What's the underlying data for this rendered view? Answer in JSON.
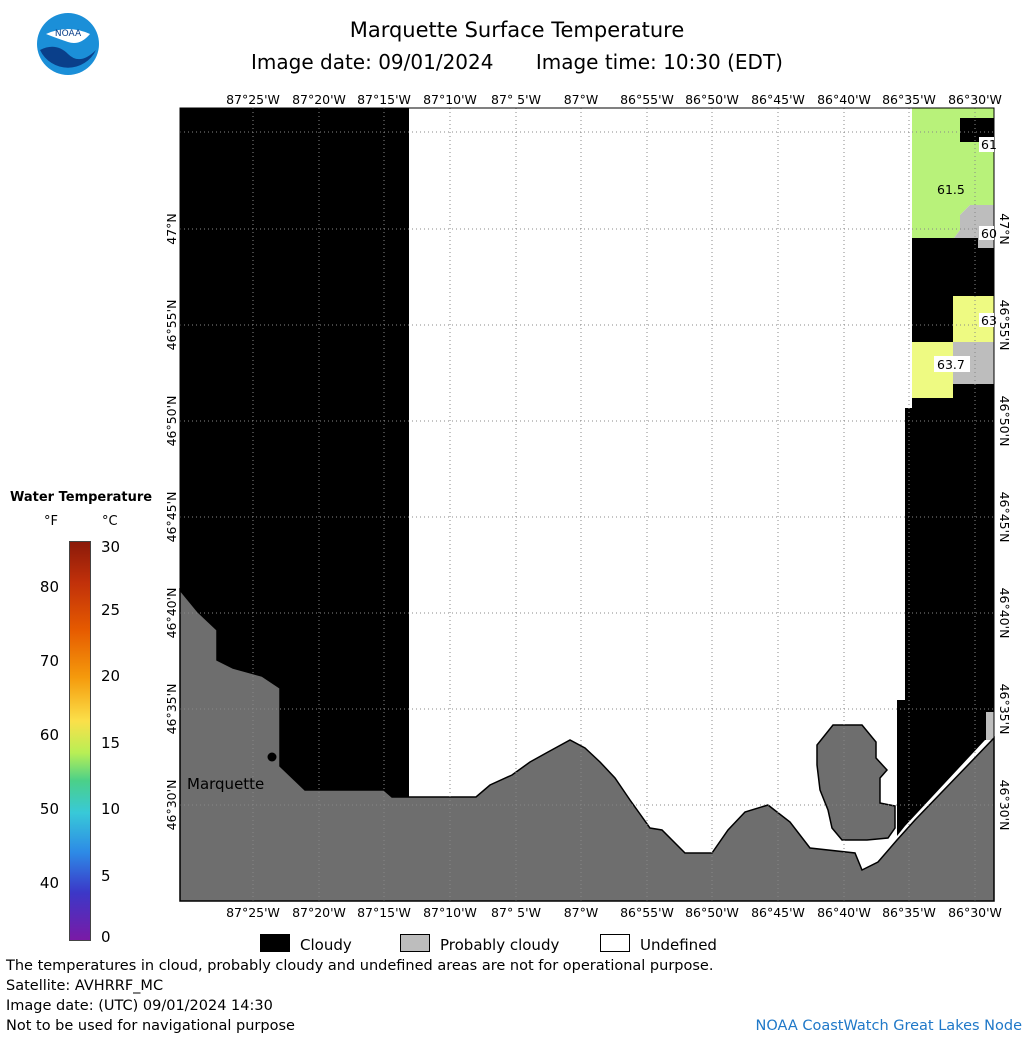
{
  "header": {
    "title": "Marquette Surface Temperature",
    "image_date": "Image date: 09/01/2024",
    "image_time": "Image time: 10:30 (EDT)"
  },
  "logo": {
    "icon": "noaa-logo",
    "text": "NOAA"
  },
  "map": {
    "longitude_labels": [
      "87°25'W",
      "87°20'W",
      "87°15'W",
      "87°10'W",
      "87° 5'W",
      "87°W",
      "86°55'W",
      "86°50'W",
      "86°45'W",
      "86°40'W",
      "86°35'W",
      "86°30'W"
    ],
    "latitude_labels": [
      "47°N",
      "46°55'N",
      "46°50'N",
      "46°45'N",
      "46°40'N",
      "46°35'N",
      "46°30'N"
    ],
    "city": "Marquette",
    "temperature_labels": [
      "61",
      "61.5",
      "60",
      "63",
      "63.7"
    ]
  },
  "color_scale": {
    "title": "Water Temperature",
    "unit_f": "°F",
    "unit_c": "°C",
    "ticks_f": [
      "80",
      "70",
      "60",
      "50",
      "40"
    ],
    "ticks_c": [
      "30",
      "25",
      "20",
      "15",
      "10",
      "5",
      "0"
    ]
  },
  "legend": {
    "cloudy": "Cloudy",
    "probably_cloudy": "Probably cloudy",
    "undefined": "Undefined"
  },
  "notes": {
    "line1": "The temperatures in cloud, probably cloudy and undefined areas are not for operational purpose.",
    "satellite": "Satellite: AVHRRF_MC",
    "utc_date": "Image date: (UTC) 09/01/2024  14:30",
    "navigation": "Not to be used for navigational purpose"
  },
  "credit": "NOAA CoastWatch Great Lakes Node",
  "colors": {
    "cloudy": "#000000",
    "probably_cloudy": "#bdbdbd",
    "land": "#6e6e6e",
    "undefined": "#ffffff",
    "temp_61": "#b8f27a",
    "temp_63": "#eefa82"
  }
}
